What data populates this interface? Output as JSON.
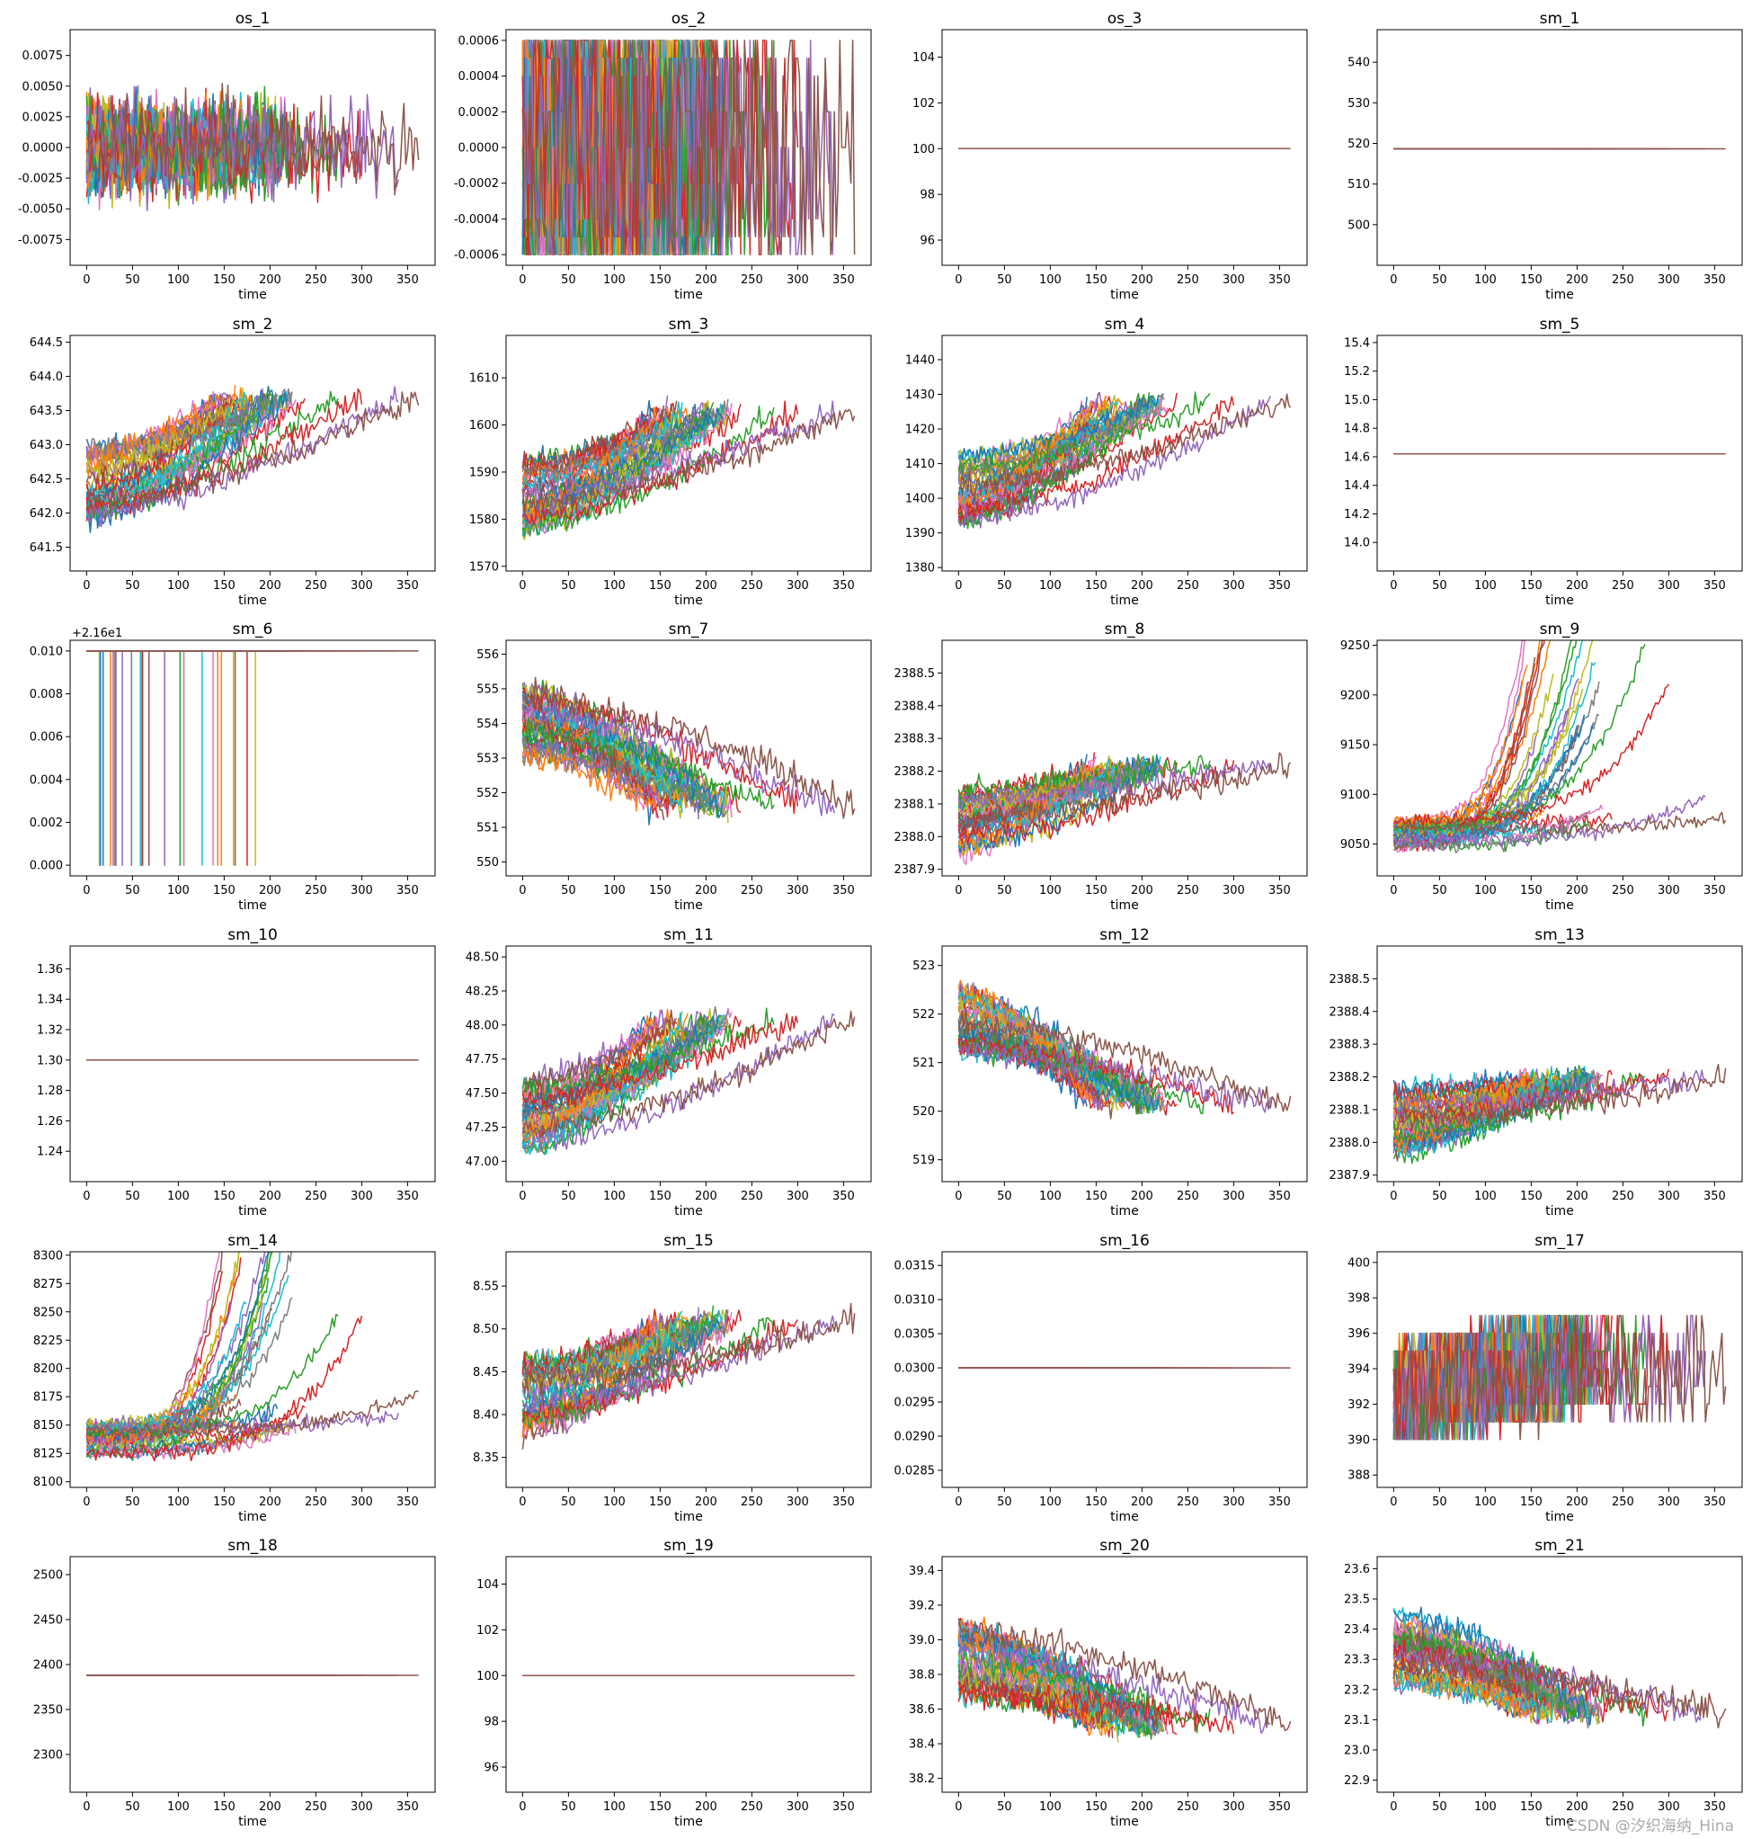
{
  "palette": [
    "#1f77b4",
    "#ff7f0e",
    "#2ca02c",
    "#d62728",
    "#9467bd",
    "#8c564b",
    "#e377c2",
    "#7f7f7f",
    "#bcbd22",
    "#17becf"
  ],
  "watermark": "CSDN @汐织海纳_Hina",
  "chart_data": [
    {
      "type": "line",
      "title": "os_1",
      "xlabel": "time",
      "xlim": [
        -18,
        380
      ],
      "xticks": [
        0,
        50,
        100,
        150,
        200,
        250,
        300,
        350
      ],
      "ylim": [
        -0.0096,
        0.0096
      ],
      "yticks": [
        "-0.0075",
        "-0.0050",
        "-0.0025",
        "0.0000",
        "0.0025",
        "0.0050",
        "0.0075"
      ],
      "pattern": "noise",
      "center": 0.0,
      "amp": 0.0032
    },
    {
      "type": "line",
      "title": "os_2",
      "xlabel": "time",
      "xlim": [
        -18,
        380
      ],
      "xticks": [
        0,
        50,
        100,
        150,
        200,
        250,
        300,
        350
      ],
      "ylim": [
        -0.00066,
        0.00066
      ],
      "yticks": [
        "-0.0006",
        "-0.0004",
        "-0.0002",
        "0.0000",
        "0.0002",
        "0.0004",
        "0.0006"
      ],
      "pattern": "discrete",
      "levels": [
        -0.0006,
        -0.0005,
        -0.0004,
        -0.0002,
        0.0,
        0.0002,
        0.0004,
        0.0005,
        0.0006
      ]
    },
    {
      "type": "line",
      "title": "os_3",
      "xlabel": "time",
      "xlim": [
        -18,
        380
      ],
      "xticks": [
        0,
        50,
        100,
        150,
        200,
        250,
        300,
        350
      ],
      "ylim": [
        94.9,
        105.2
      ],
      "yticks": [
        "96",
        "98",
        "100",
        "102",
        "104"
      ],
      "pattern": "flat",
      "value": 100
    },
    {
      "type": "line",
      "title": "sm_1",
      "xlabel": "time",
      "xlim": [
        -18,
        380
      ],
      "xticks": [
        0,
        50,
        100,
        150,
        200,
        250,
        300,
        350
      ],
      "ylim": [
        490,
        548
      ],
      "yticks": [
        "500",
        "510",
        "520",
        "530",
        "540"
      ],
      "pattern": "flat",
      "value": 518.67
    },
    {
      "type": "line",
      "title": "sm_2",
      "xlabel": "time",
      "xlim": [
        -18,
        380
      ],
      "xticks": [
        0,
        50,
        100,
        150,
        200,
        250,
        300,
        350
      ],
      "ylim": [
        641.15,
        644.6
      ],
      "yticks": [
        "641.5",
        "642.0",
        "642.5",
        "643.0",
        "643.5",
        "644.0",
        "644.5"
      ],
      "pattern": "trend",
      "start": 642.4,
      "end": 643.7,
      "noise": 0.35
    },
    {
      "type": "line",
      "title": "sm_3",
      "xlabel": "time",
      "xlim": [
        -18,
        380
      ],
      "xticks": [
        0,
        50,
        100,
        150,
        200,
        250,
        300,
        350
      ],
      "ylim": [
        1569,
        1619
      ],
      "yticks": [
        "1570",
        "1580",
        "1590",
        "1600",
        "1610"
      ],
      "pattern": "trend",
      "start": 1585,
      "end": 1603,
      "noise": 5
    },
    {
      "type": "line",
      "title": "sm_4",
      "xlabel": "time",
      "xlim": [
        -18,
        380
      ],
      "xticks": [
        0,
        50,
        100,
        150,
        200,
        250,
        300,
        350
      ],
      "ylim": [
        1379,
        1447
      ],
      "yticks": [
        "1380",
        "1390",
        "1400",
        "1410",
        "1420",
        "1430",
        "1440"
      ],
      "pattern": "trend",
      "start": 1403,
      "end": 1428,
      "noise": 6
    },
    {
      "type": "line",
      "title": "sm_5",
      "xlabel": "time",
      "xlim": [
        -18,
        380
      ],
      "xticks": [
        0,
        50,
        100,
        150,
        200,
        250,
        300,
        350
      ],
      "ylim": [
        13.8,
        15.45
      ],
      "yticks": [
        "14.0",
        "14.2",
        "14.4",
        "14.6",
        "14.8",
        "15.0",
        "15.2",
        "15.4"
      ],
      "pattern": "flat",
      "value": 14.62
    },
    {
      "type": "line",
      "title": "sm_6",
      "xlabel": "time",
      "offset_text": "+2.16e1",
      "xlim": [
        -18,
        380
      ],
      "xticks": [
        0,
        50,
        100,
        150,
        200,
        250,
        300,
        350
      ],
      "ylim": [
        -0.0005,
        0.0105
      ],
      "yticks": [
        "0.000",
        "0.002",
        "0.004",
        "0.006",
        "0.008",
        "0.010"
      ],
      "pattern": "spikes",
      "top": 0.01,
      "bottom": 0.0
    },
    {
      "type": "line",
      "title": "sm_7",
      "xlabel": "time",
      "xlim": [
        -18,
        380
      ],
      "xticks": [
        0,
        50,
        100,
        150,
        200,
        250,
        300,
        350
      ],
      "ylim": [
        549.6,
        556.4
      ],
      "yticks": [
        "550",
        "551",
        "552",
        "553",
        "554",
        "555",
        "556"
      ],
      "pattern": "trend",
      "start": 554.0,
      "end": 551.6,
      "noise": 0.8
    },
    {
      "type": "line",
      "title": "sm_8",
      "xlabel": "time",
      "xlim": [
        -18,
        380
      ],
      "xticks": [
        0,
        50,
        100,
        150,
        200,
        250,
        300,
        350
      ],
      "ylim": [
        2387.88,
        2388.6
      ],
      "yticks": [
        "2387.9",
        "2388.0",
        "2388.1",
        "2388.2",
        "2388.3",
        "2388.4",
        "2388.5"
      ],
      "pattern": "trend",
      "start": 2388.05,
      "end": 2388.22,
      "noise": 0.07
    },
    {
      "type": "line",
      "title": "sm_9",
      "xlabel": "time",
      "xlim": [
        -18,
        380
      ],
      "xticks": [
        0,
        50,
        100,
        150,
        200,
        250,
        300,
        350
      ],
      "ylim": [
        9018,
        9255
      ],
      "yticks": [
        "9050",
        "9100",
        "9150",
        "9200",
        "9250"
      ],
      "pattern": "explode",
      "start": 9060,
      "noise": 6
    },
    {
      "type": "line",
      "title": "sm_10",
      "xlabel": "time",
      "xlim": [
        -18,
        380
      ],
      "xticks": [
        0,
        50,
        100,
        150,
        200,
        250,
        300,
        350
      ],
      "ylim": [
        1.22,
        1.375
      ],
      "yticks": [
        "1.24",
        "1.26",
        "1.28",
        "1.30",
        "1.32",
        "1.34",
        "1.36"
      ],
      "pattern": "flat",
      "value": 1.3
    },
    {
      "type": "line",
      "title": "sm_11",
      "xlabel": "time",
      "xlim": [
        -18,
        380
      ],
      "xticks": [
        0,
        50,
        100,
        150,
        200,
        250,
        300,
        350
      ],
      "ylim": [
        46.85,
        48.58
      ],
      "yticks": [
        "47.00",
        "47.25",
        "47.50",
        "47.75",
        "48.00",
        "48.25",
        "48.50"
      ],
      "pattern": "trend",
      "start": 47.35,
      "end": 48.05,
      "noise": 0.17
    },
    {
      "type": "line",
      "title": "sm_12",
      "xlabel": "time",
      "xlim": [
        -18,
        380
      ],
      "xticks": [
        0,
        50,
        100,
        150,
        200,
        250,
        300,
        350
      ],
      "ylim": [
        518.55,
        523.4
      ],
      "yticks": [
        "519",
        "520",
        "521",
        "522",
        "523"
      ],
      "pattern": "trend",
      "start": 521.9,
      "end": 520.1,
      "noise": 0.5
    },
    {
      "type": "line",
      "title": "sm_13",
      "xlabel": "time",
      "xlim": [
        -18,
        380
      ],
      "xticks": [
        0,
        50,
        100,
        150,
        200,
        250,
        300,
        350
      ],
      "ylim": [
        2387.88,
        2388.6
      ],
      "yticks": [
        "2387.9",
        "2388.0",
        "2388.1",
        "2388.2",
        "2388.3",
        "2388.4",
        "2388.5"
      ],
      "pattern": "trend",
      "start": 2388.06,
      "end": 2388.2,
      "noise": 0.07
    },
    {
      "type": "line",
      "title": "sm_14",
      "xlabel": "time",
      "xlim": [
        -18,
        380
      ],
      "xticks": [
        0,
        50,
        100,
        150,
        200,
        250,
        300,
        350
      ],
      "ylim": [
        8095,
        8303
      ],
      "yticks": [
        "8100",
        "8125",
        "8150",
        "8175",
        "8200",
        "8225",
        "8250",
        "8275",
        "8300"
      ],
      "pattern": "explode",
      "start": 8138,
      "noise": 6
    },
    {
      "type": "line",
      "title": "sm_15",
      "xlabel": "time",
      "xlim": [
        -18,
        380
      ],
      "xticks": [
        0,
        50,
        100,
        150,
        200,
        250,
        300,
        350
      ],
      "ylim": [
        8.315,
        8.59
      ],
      "yticks": [
        "8.35",
        "8.40",
        "8.45",
        "8.50",
        "8.55"
      ],
      "pattern": "trend",
      "start": 8.42,
      "end": 8.51,
      "noise": 0.03
    },
    {
      "type": "line",
      "title": "sm_16",
      "xlabel": "time",
      "xlim": [
        -18,
        380
      ],
      "xticks": [
        0,
        50,
        100,
        150,
        200,
        250,
        300,
        350
      ],
      "ylim": [
        0.02825,
        0.0317
      ],
      "yticks": [
        "0.0285",
        "0.0290",
        "0.0295",
        "0.0300",
        "0.0305",
        "0.0310",
        "0.0315"
      ],
      "pattern": "flat",
      "value": 0.03
    },
    {
      "type": "line",
      "title": "sm_17",
      "xlabel": "time",
      "xlim": [
        -18,
        380
      ],
      "xticks": [
        0,
        50,
        100,
        150,
        200,
        250,
        300,
        350
      ],
      "ylim": [
        387.3,
        400.6
      ],
      "yticks": [
        "388",
        "390",
        "392",
        "394",
        "396",
        "398",
        "400"
      ],
      "pattern": "discrete",
      "levels": [
        390,
        391,
        392,
        393,
        394,
        395,
        396,
        397
      ],
      "drift": true
    },
    {
      "type": "line",
      "title": "sm_18",
      "xlabel": "time",
      "xlim": [
        -18,
        380
      ],
      "xticks": [
        0,
        50,
        100,
        150,
        200,
        250,
        300,
        350
      ],
      "ylim": [
        2258,
        2520
      ],
      "yticks": [
        "2300",
        "2350",
        "2400",
        "2450",
        "2500"
      ],
      "pattern": "flat",
      "value": 2388
    },
    {
      "type": "line",
      "title": "sm_19",
      "xlabel": "time",
      "xlim": [
        -18,
        380
      ],
      "xticks": [
        0,
        50,
        100,
        150,
        200,
        250,
        300,
        350
      ],
      "ylim": [
        94.9,
        105.2
      ],
      "yticks": [
        "96",
        "98",
        "100",
        "102",
        "104"
      ],
      "pattern": "flat",
      "value": 100
    },
    {
      "type": "line",
      "title": "sm_20",
      "xlabel": "time",
      "xlim": [
        -18,
        380
      ],
      "xticks": [
        0,
        50,
        100,
        150,
        200,
        250,
        300,
        350
      ],
      "ylim": [
        38.12,
        39.48
      ],
      "yticks": [
        "38.2",
        "38.4",
        "38.6",
        "38.8",
        "39.0",
        "39.2",
        "39.4"
      ],
      "pattern": "trend",
      "start": 38.88,
      "end": 38.5,
      "noise": 0.16
    },
    {
      "type": "line",
      "title": "sm_21",
      "xlabel": "time",
      "xlim": [
        -18,
        380
      ],
      "xticks": [
        0,
        50,
        100,
        150,
        200,
        250,
        300,
        350
      ],
      "ylim": [
        22.86,
        23.64
      ],
      "yticks": [
        "22.9",
        "23.0",
        "23.1",
        "23.2",
        "23.3",
        "23.4",
        "23.5",
        "23.6"
      ],
      "pattern": "trend",
      "start": 23.33,
      "end": 23.12,
      "noise": 0.09
    }
  ]
}
